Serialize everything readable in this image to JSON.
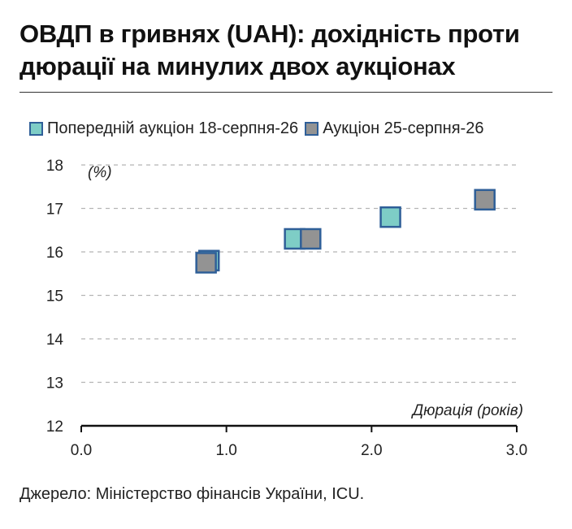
{
  "title": "ОВДП в гривнях (UAH): дохідність проти дюрації на минулих двох аукціонах",
  "source": "Джерело: Міністерство фінансів України, ICU.",
  "chart_data": {
    "type": "scatter",
    "ylabel": "(%)",
    "xlabel": "Дюрація (років)",
    "xlim": [
      0.0,
      3.0
    ],
    "ylim": [
      12,
      18
    ],
    "x_ticks": [
      "0.0",
      "1.0",
      "2.0",
      "3.0"
    ],
    "y_ticks": [
      "12",
      "13",
      "14",
      "15",
      "16",
      "17",
      "18"
    ],
    "grid": "horizontal-dashed",
    "legend_position": "top",
    "series": [
      {
        "name": "Попередній аукціон 18-серпня-26",
        "color": "#7ecdc6",
        "border": "#2f5f98",
        "points": [
          {
            "x": 0.88,
            "y": 15.8
          },
          {
            "x": 1.47,
            "y": 16.3
          },
          {
            "x": 2.13,
            "y": 16.8
          }
        ]
      },
      {
        "name": "Аукціон 25-серпня-26",
        "color": "#939393",
        "border": "#2f5f98",
        "points": [
          {
            "x": 0.86,
            "y": 15.75
          },
          {
            "x": 1.58,
            "y": 16.3
          },
          {
            "x": 2.78,
            "y": 17.2
          }
        ]
      }
    ]
  }
}
